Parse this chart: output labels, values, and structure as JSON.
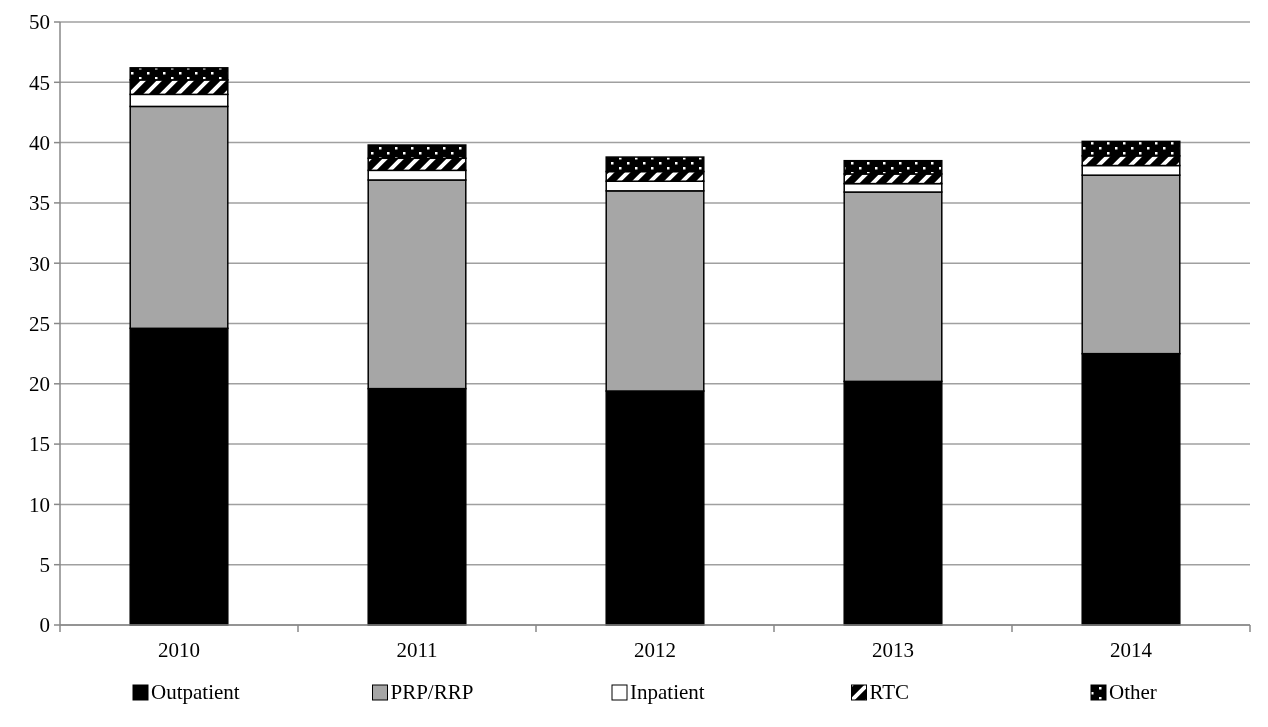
{
  "chart_data": {
    "type": "bar",
    "stacked": true,
    "categories": [
      "2010",
      "2011",
      "2012",
      "2013",
      "2014"
    ],
    "series": [
      {
        "name": "Outpatient",
        "color": "#000000",
        "values": [
          24.6,
          19.6,
          19.4,
          20.2,
          22.5
        ]
      },
      {
        "name": "PRP/RRP",
        "color": "#a6a6a6",
        "values": [
          18.4,
          17.3,
          16.6,
          15.7,
          14.8
        ]
      },
      {
        "name": "Inpatient",
        "color": "#ffffff",
        "values": [
          1.0,
          0.8,
          0.8,
          0.7,
          0.8
        ]
      },
      {
        "name": "RTC",
        "color": "#000000",
        "values": [
          1.2,
          1.0,
          0.8,
          0.8,
          0.8
        ]
      },
      {
        "name": "Other",
        "color": "#000000",
        "values": [
          1.0,
          1.1,
          1.2,
          1.1,
          1.2
        ]
      }
    ],
    "ylim": [
      0,
      50
    ],
    "yticks": [
      0,
      5,
      10,
      15,
      20,
      25,
      30,
      35,
      40,
      45,
      50
    ],
    "grid": "y",
    "legend": "bottom"
  }
}
